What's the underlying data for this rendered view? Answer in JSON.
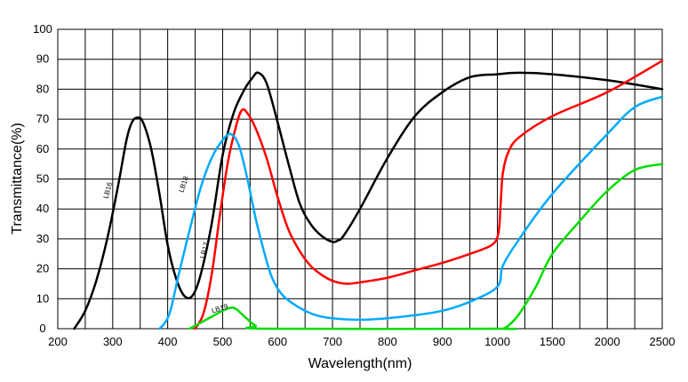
{
  "chart_data": {
    "type": "line",
    "xlabel": "Wavelength(nm)",
    "ylabel": "Transmittance(%)",
    "x_tick_labels": [
      "200",
      "300",
      "400",
      "500",
      "600",
      "700",
      "800",
      "900",
      "1000",
      "1500",
      "2000",
      "2500"
    ],
    "y_tick_labels": [
      "0",
      "10",
      "20",
      "30",
      "40",
      "50",
      "60",
      "70",
      "80",
      "90",
      "100"
    ],
    "ylim": [
      0,
      100
    ],
    "grid": true,
    "legend": "none",
    "series": [
      {
        "name": "LB16",
        "color": "#000000",
        "points": [
          [
            230,
            0
          ],
          [
            250,
            6
          ],
          [
            270,
            16
          ],
          [
            290,
            30
          ],
          [
            310,
            48
          ],
          [
            325,
            63
          ],
          [
            335,
            69
          ],
          [
            345,
            70.5
          ],
          [
            355,
            69
          ],
          [
            370,
            60
          ],
          [
            385,
            45
          ],
          [
            400,
            28
          ],
          [
            415,
            17
          ],
          [
            430,
            11
          ],
          [
            445,
            11
          ],
          [
            460,
            18
          ],
          [
            480,
            35
          ],
          [
            500,
            58
          ],
          [
            520,
            72
          ],
          [
            540,
            80
          ],
          [
            555,
            84
          ],
          [
            565,
            85.5
          ],
          [
            580,
            82
          ],
          [
            600,
            69
          ],
          [
            620,
            55
          ],
          [
            640,
            42
          ],
          [
            660,
            35
          ],
          [
            680,
            31
          ],
          [
            700,
            29
          ],
          [
            710,
            29.5
          ],
          [
            720,
            31
          ],
          [
            750,
            40
          ],
          [
            800,
            57
          ],
          [
            850,
            71
          ],
          [
            900,
            79
          ],
          [
            950,
            84
          ],
          [
            1000,
            85
          ],
          [
            1200,
            85.5
          ],
          [
            1500,
            85
          ],
          [
            2000,
            83
          ],
          [
            2500,
            80
          ]
        ]
      },
      {
        "name": "LB17",
        "color": "#ff0000",
        "points": [
          [
            450,
            0
          ],
          [
            465,
            5
          ],
          [
            480,
            18
          ],
          [
            495,
            38
          ],
          [
            510,
            56
          ],
          [
            525,
            68
          ],
          [
            535,
            73
          ],
          [
            545,
            72
          ],
          [
            560,
            67
          ],
          [
            580,
            57
          ],
          [
            600,
            44
          ],
          [
            620,
            33
          ],
          [
            640,
            26
          ],
          [
            660,
            21
          ],
          [
            680,
            18
          ],
          [
            700,
            16
          ],
          [
            725,
            15
          ],
          [
            750,
            15.5
          ],
          [
            800,
            17
          ],
          [
            850,
            19.5
          ],
          [
            900,
            22
          ],
          [
            950,
            25
          ],
          [
            990,
            28
          ],
          [
            1010,
            32
          ],
          [
            1030,
            42
          ],
          [
            1050,
            52
          ],
          [
            1100,
            59
          ],
          [
            1200,
            64
          ],
          [
            1500,
            71
          ],
          [
            2000,
            79
          ],
          [
            2500,
            89.5
          ]
        ]
      },
      {
        "name": "LB18",
        "color": "#00aaff",
        "points": [
          [
            385,
            0
          ],
          [
            395,
            2
          ],
          [
            405,
            6
          ],
          [
            420,
            18
          ],
          [
            440,
            33
          ],
          [
            460,
            47
          ],
          [
            480,
            57
          ],
          [
            500,
            63
          ],
          [
            515,
            65
          ],
          [
            530,
            61
          ],
          [
            545,
            50
          ],
          [
            560,
            37
          ],
          [
            575,
            26
          ],
          [
            590,
            17
          ],
          [
            610,
            11
          ],
          [
            640,
            7
          ],
          [
            670,
            4.5
          ],
          [
            700,
            3.5
          ],
          [
            750,
            3
          ],
          [
            800,
            3.5
          ],
          [
            850,
            4.5
          ],
          [
            900,
            6
          ],
          [
            950,
            9
          ],
          [
            1000,
            14
          ],
          [
            1050,
            21
          ],
          [
            1200,
            30
          ],
          [
            1500,
            45
          ],
          [
            2000,
            65
          ],
          [
            2250,
            74
          ],
          [
            2500,
            77.5
          ]
        ]
      },
      {
        "name": "LB19",
        "color": "#00dd00",
        "points": [
          [
            440,
            0
          ],
          [
            460,
            2
          ],
          [
            480,
            4
          ],
          [
            500,
            6
          ],
          [
            515,
            7
          ],
          [
            525,
            6.5
          ],
          [
            540,
            4
          ],
          [
            560,
            1
          ],
          [
            580,
            0
          ],
          [
            1000,
            0
          ],
          [
            1050,
            0
          ],
          [
            1100,
            1
          ],
          [
            1200,
            5
          ],
          [
            1350,
            14
          ],
          [
            1500,
            25
          ],
          [
            1750,
            36
          ],
          [
            2000,
            46
          ],
          [
            2250,
            53
          ],
          [
            2500,
            55
          ]
        ]
      }
    ]
  }
}
